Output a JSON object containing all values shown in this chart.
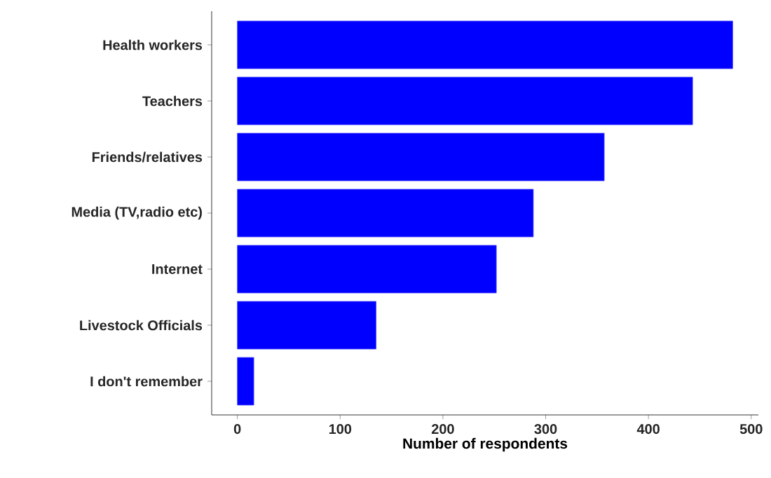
{
  "chart_data": {
    "type": "bar",
    "orientation": "horizontal",
    "xlabel": "Number of respondents",
    "categories": [
      "Health workers",
      "Teachers",
      "Friends/relatives",
      "Media (TV,radio etc)",
      "Internet",
      "Livestock Officials",
      "I don't remember"
    ],
    "values": [
      482,
      443,
      357,
      288,
      252,
      135,
      16
    ],
    "color": "#0000ff",
    "xlim": [
      -25,
      507
    ],
    "xticks": [
      0,
      100,
      200,
      300,
      400,
      500
    ],
    "grid": false
  }
}
